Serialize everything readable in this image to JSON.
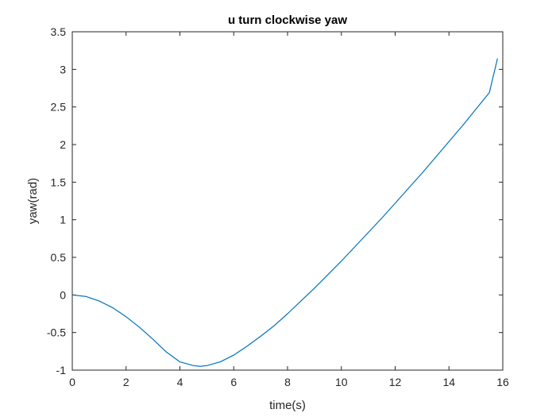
{
  "chart_data": {
    "type": "line",
    "title": "u turn clockwise yaw",
    "xlabel": "time(s)",
    "ylabel": "yaw(rad)",
    "xlim": [
      0,
      16
    ],
    "ylim": [
      -1,
      3.5
    ],
    "xticks": [
      0,
      2,
      4,
      6,
      8,
      10,
      12,
      14,
      16
    ],
    "yticks": [
      -1,
      -0.5,
      0,
      0.5,
      1,
      1.5,
      2,
      2.5,
      3,
      3.5
    ],
    "xtick_labels": [
      "0",
      "2",
      "4",
      "6",
      "8",
      "10",
      "12",
      "14",
      "16"
    ],
    "ytick_labels": [
      "-1",
      "-0.5",
      "0",
      "0.5",
      "1",
      "1.5",
      "2",
      "2.5",
      "3",
      "3.5"
    ],
    "grid": false,
    "line_color": "#0072BD",
    "series": [
      {
        "x": [
          0,
          0.5,
          1,
          1.5,
          2,
          2.5,
          3,
          3.5,
          4,
          4.5,
          4.75,
          5,
          5.5,
          6,
          6.5,
          7,
          7.5,
          8,
          8.5,
          9,
          9.5,
          10,
          10.5,
          11,
          11.5,
          12,
          12.5,
          13,
          13.5,
          14,
          14.5,
          15,
          15.5,
          15.8
        ],
        "y": [
          0,
          -0.02,
          -0.08,
          -0.17,
          -0.29,
          -0.43,
          -0.59,
          -0.76,
          -0.89,
          -0.94,
          -0.95,
          -0.94,
          -0.89,
          -0.8,
          -0.68,
          -0.55,
          -0.41,
          -0.25,
          -0.08,
          0.09,
          0.27,
          0.45,
          0.64,
          0.83,
          1.02,
          1.22,
          1.42,
          1.62,
          1.83,
          2.04,
          2.25,
          2.47,
          2.69,
          3.14
        ]
      }
    ]
  }
}
